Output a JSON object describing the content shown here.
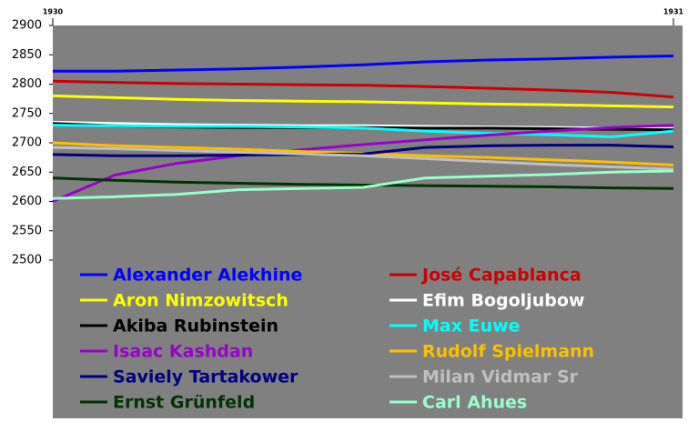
{
  "chart_data": {
    "type": "line",
    "x": [
      1930,
      1930.1,
      1930.2,
      1930.3,
      1930.4,
      1930.5,
      1930.6,
      1930.7,
      1930.8,
      1930.9,
      1931
    ],
    "xlim": [
      1930,
      1931
    ],
    "xticks": [
      1930,
      1931
    ],
    "ylim": [
      2500,
      2900
    ],
    "yticks": [
      2500,
      2550,
      2600,
      2650,
      2700,
      2750,
      2800,
      2850,
      2900
    ],
    "grid": false,
    "series": [
      {
        "name": "Alexander Alekhine",
        "color": "#0000ff",
        "values": [
          2822,
          2822,
          2824,
          2826,
          2829,
          2833,
          2838,
          2841,
          2843,
          2846,
          2848
        ]
      },
      {
        "name": "José Capablanca",
        "color": "#cc0000",
        "values": [
          2805,
          2803,
          2801,
          2800,
          2799,
          2798,
          2796,
          2793,
          2790,
          2786,
          2778
        ]
      },
      {
        "name": "Aron Nimzowitsch",
        "color": "#ffff00",
        "values": [
          2780,
          2777,
          2774,
          2772,
          2771,
          2770,
          2768,
          2766,
          2765,
          2763,
          2761
        ]
      },
      {
        "name": "Efim Bogoljubow",
        "color": "#ffffff",
        "values": [
          2735,
          2733,
          2731,
          2730,
          2729,
          2729,
          2728,
          2727,
          2726,
          2725,
          2724
        ]
      },
      {
        "name": "Akiba Rubinstein",
        "color": "#000000",
        "values": [
          2733,
          2729,
          2727,
          2726,
          2726,
          2726,
          2725,
          2725,
          2724,
          2723,
          2722
        ]
      },
      {
        "name": "Max Euwe",
        "color": "#00ffff",
        "values": [
          2730,
          2729,
          2728,
          2728,
          2727,
          2725,
          2720,
          2716,
          2714,
          2710,
          2720
        ]
      },
      {
        "name": "Isaac Kashdan",
        "color": "#9900cc",
        "values": [
          2600,
          2645,
          2665,
          2678,
          2688,
          2697,
          2705,
          2713,
          2720,
          2726,
          2730
        ]
      },
      {
        "name": "Rudolf Spielmann",
        "color": "#ffbf00",
        "values": [
          2700,
          2695,
          2692,
          2689,
          2685,
          2682,
          2678,
          2675,
          2671,
          2667,
          2662
        ]
      },
      {
        "name": "Saviely Tartakower",
        "color": "#000080",
        "values": [
          2680,
          2678,
          2678,
          2679,
          2680,
          2681,
          2692,
          2695,
          2696,
          2696,
          2693
        ]
      },
      {
        "name": "Milan Vidmar Sr",
        "color": "#c0c0c0",
        "values": [
          2692,
          2690,
          2687,
          2684,
          2681,
          2678,
          2673,
          2668,
          2663,
          2659,
          2655
        ]
      },
      {
        "name": "Ernst Grünfeld",
        "color": "#003300",
        "values": [
          2640,
          2636,
          2633,
          2631,
          2629,
          2628,
          2627,
          2626,
          2625,
          2623,
          2622
        ]
      },
      {
        "name": "Carl Ahues",
        "color": "#99ffcc",
        "values": [
          2605,
          2608,
          2612,
          2620,
          2622,
          2624,
          2640,
          2643,
          2646,
          2650,
          2652
        ]
      }
    ]
  }
}
